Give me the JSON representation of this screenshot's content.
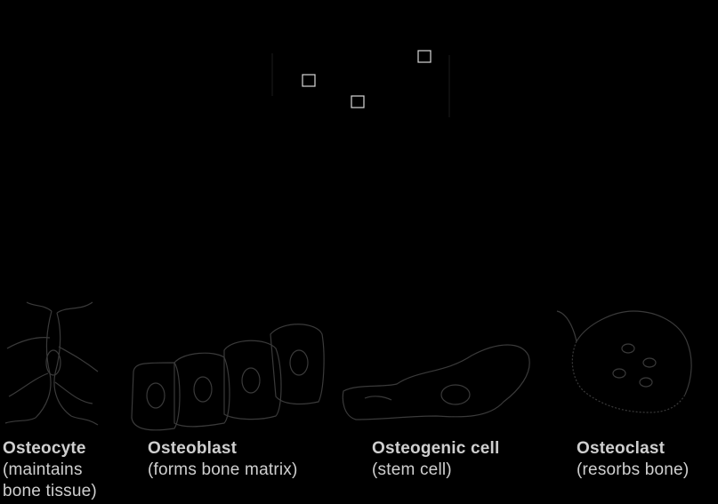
{
  "figure": {
    "cells": [
      {
        "id": "osteocyte",
        "name": "Osteocyte",
        "description": "(maintains\nbone tissue)"
      },
      {
        "id": "osteoblast",
        "name": "Osteoblast",
        "description": "(forms bone matrix)"
      },
      {
        "id": "osteogenic",
        "name": "Osteogenic cell",
        "description": "(stem cell)"
      },
      {
        "id": "osteoclast",
        "name": "Osteoclast",
        "description": "(resorbs bone)"
      }
    ],
    "colors": {
      "background": "#000000",
      "outline": "#3a3a3a",
      "text": "#cfcfcf",
      "square": "#d9d9d9"
    }
  }
}
